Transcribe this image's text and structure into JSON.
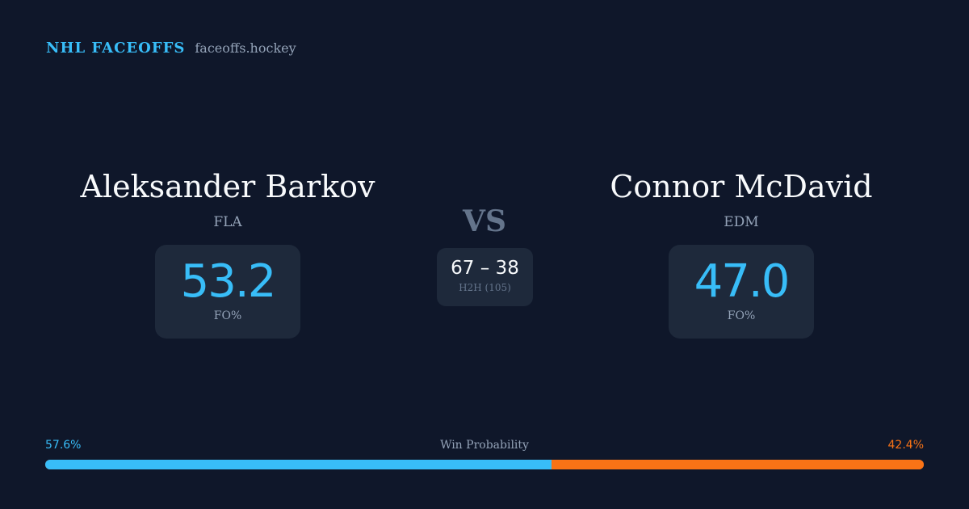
{
  "brand": {
    "name": "NHL FACEOFFS",
    "site": "faceoffs.hockey"
  },
  "players": [
    {
      "name": "Aleksander Barkov",
      "team": "FLA",
      "fo_pct": "53.2",
      "fo_label": "FO%"
    },
    {
      "name": "Connor McDavid",
      "team": "EDM",
      "fo_pct": "47.0",
      "fo_label": "FO%"
    }
  ],
  "vs": "VS",
  "h2h": {
    "score": "67 – 38",
    "label": "H2H (105)"
  },
  "win_probability": {
    "title": "Win Probability",
    "left": "57.6%",
    "right": "42.4%",
    "left_value": 57.6,
    "colors": {
      "left": "#38bdf8",
      "right": "#f97316"
    }
  }
}
